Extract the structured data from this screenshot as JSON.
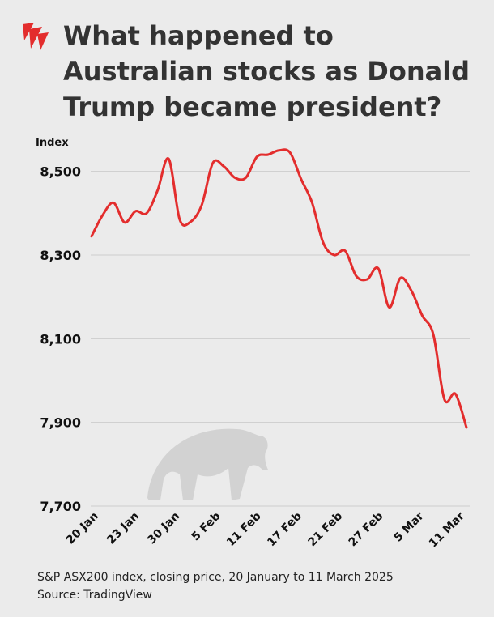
{
  "header": {
    "title": "What happened to Australian stocks as Donald Trump became president?",
    "logo_icon": "sbs-logo-icon"
  },
  "colors": {
    "line": "#e32d2d",
    "grid": "#cccccc",
    "bear": "#d2d2d2",
    "background": "#ebebeb"
  },
  "chart_data": {
    "type": "line",
    "title": "What happened to Australian stocks as Donald Trump became president?",
    "ylabel": "Index",
    "xlabel": "",
    "ylim": [
      7700,
      8600
    ],
    "yticks": [
      7700,
      7900,
      8100,
      8300,
      8500
    ],
    "ytick_labels": [
      "7,700",
      "7,900",
      "8,100",
      "8,300",
      "8,500"
    ],
    "xtick_labels": [
      "20 Jan",
      "23 Jan",
      "30 Jan",
      "5 Feb",
      "11 Feb",
      "17 Feb",
      "21 Feb",
      "27 Feb",
      "5 Mar",
      "11 Mar"
    ],
    "grid": true,
    "series": [
      {
        "values": [
          8345,
          8395,
          8425,
          8378,
          8405,
          8400,
          8455,
          8530,
          8385,
          8380,
          8420,
          8520,
          8512,
          8485,
          8485,
          8535,
          8540,
          8550,
          8545,
          8482,
          8425,
          8330,
          8300,
          8310,
          8250,
          8242,
          8268,
          8175,
          8245,
          8215,
          8155,
          8110,
          7955,
          7968,
          7888
        ]
      }
    ],
    "decoration": "bear-silhouette"
  },
  "footer": {
    "caption": "S&P ASX200 index, closing price, 20 January to 11 March 2025",
    "source": "Source: TradingView"
  }
}
